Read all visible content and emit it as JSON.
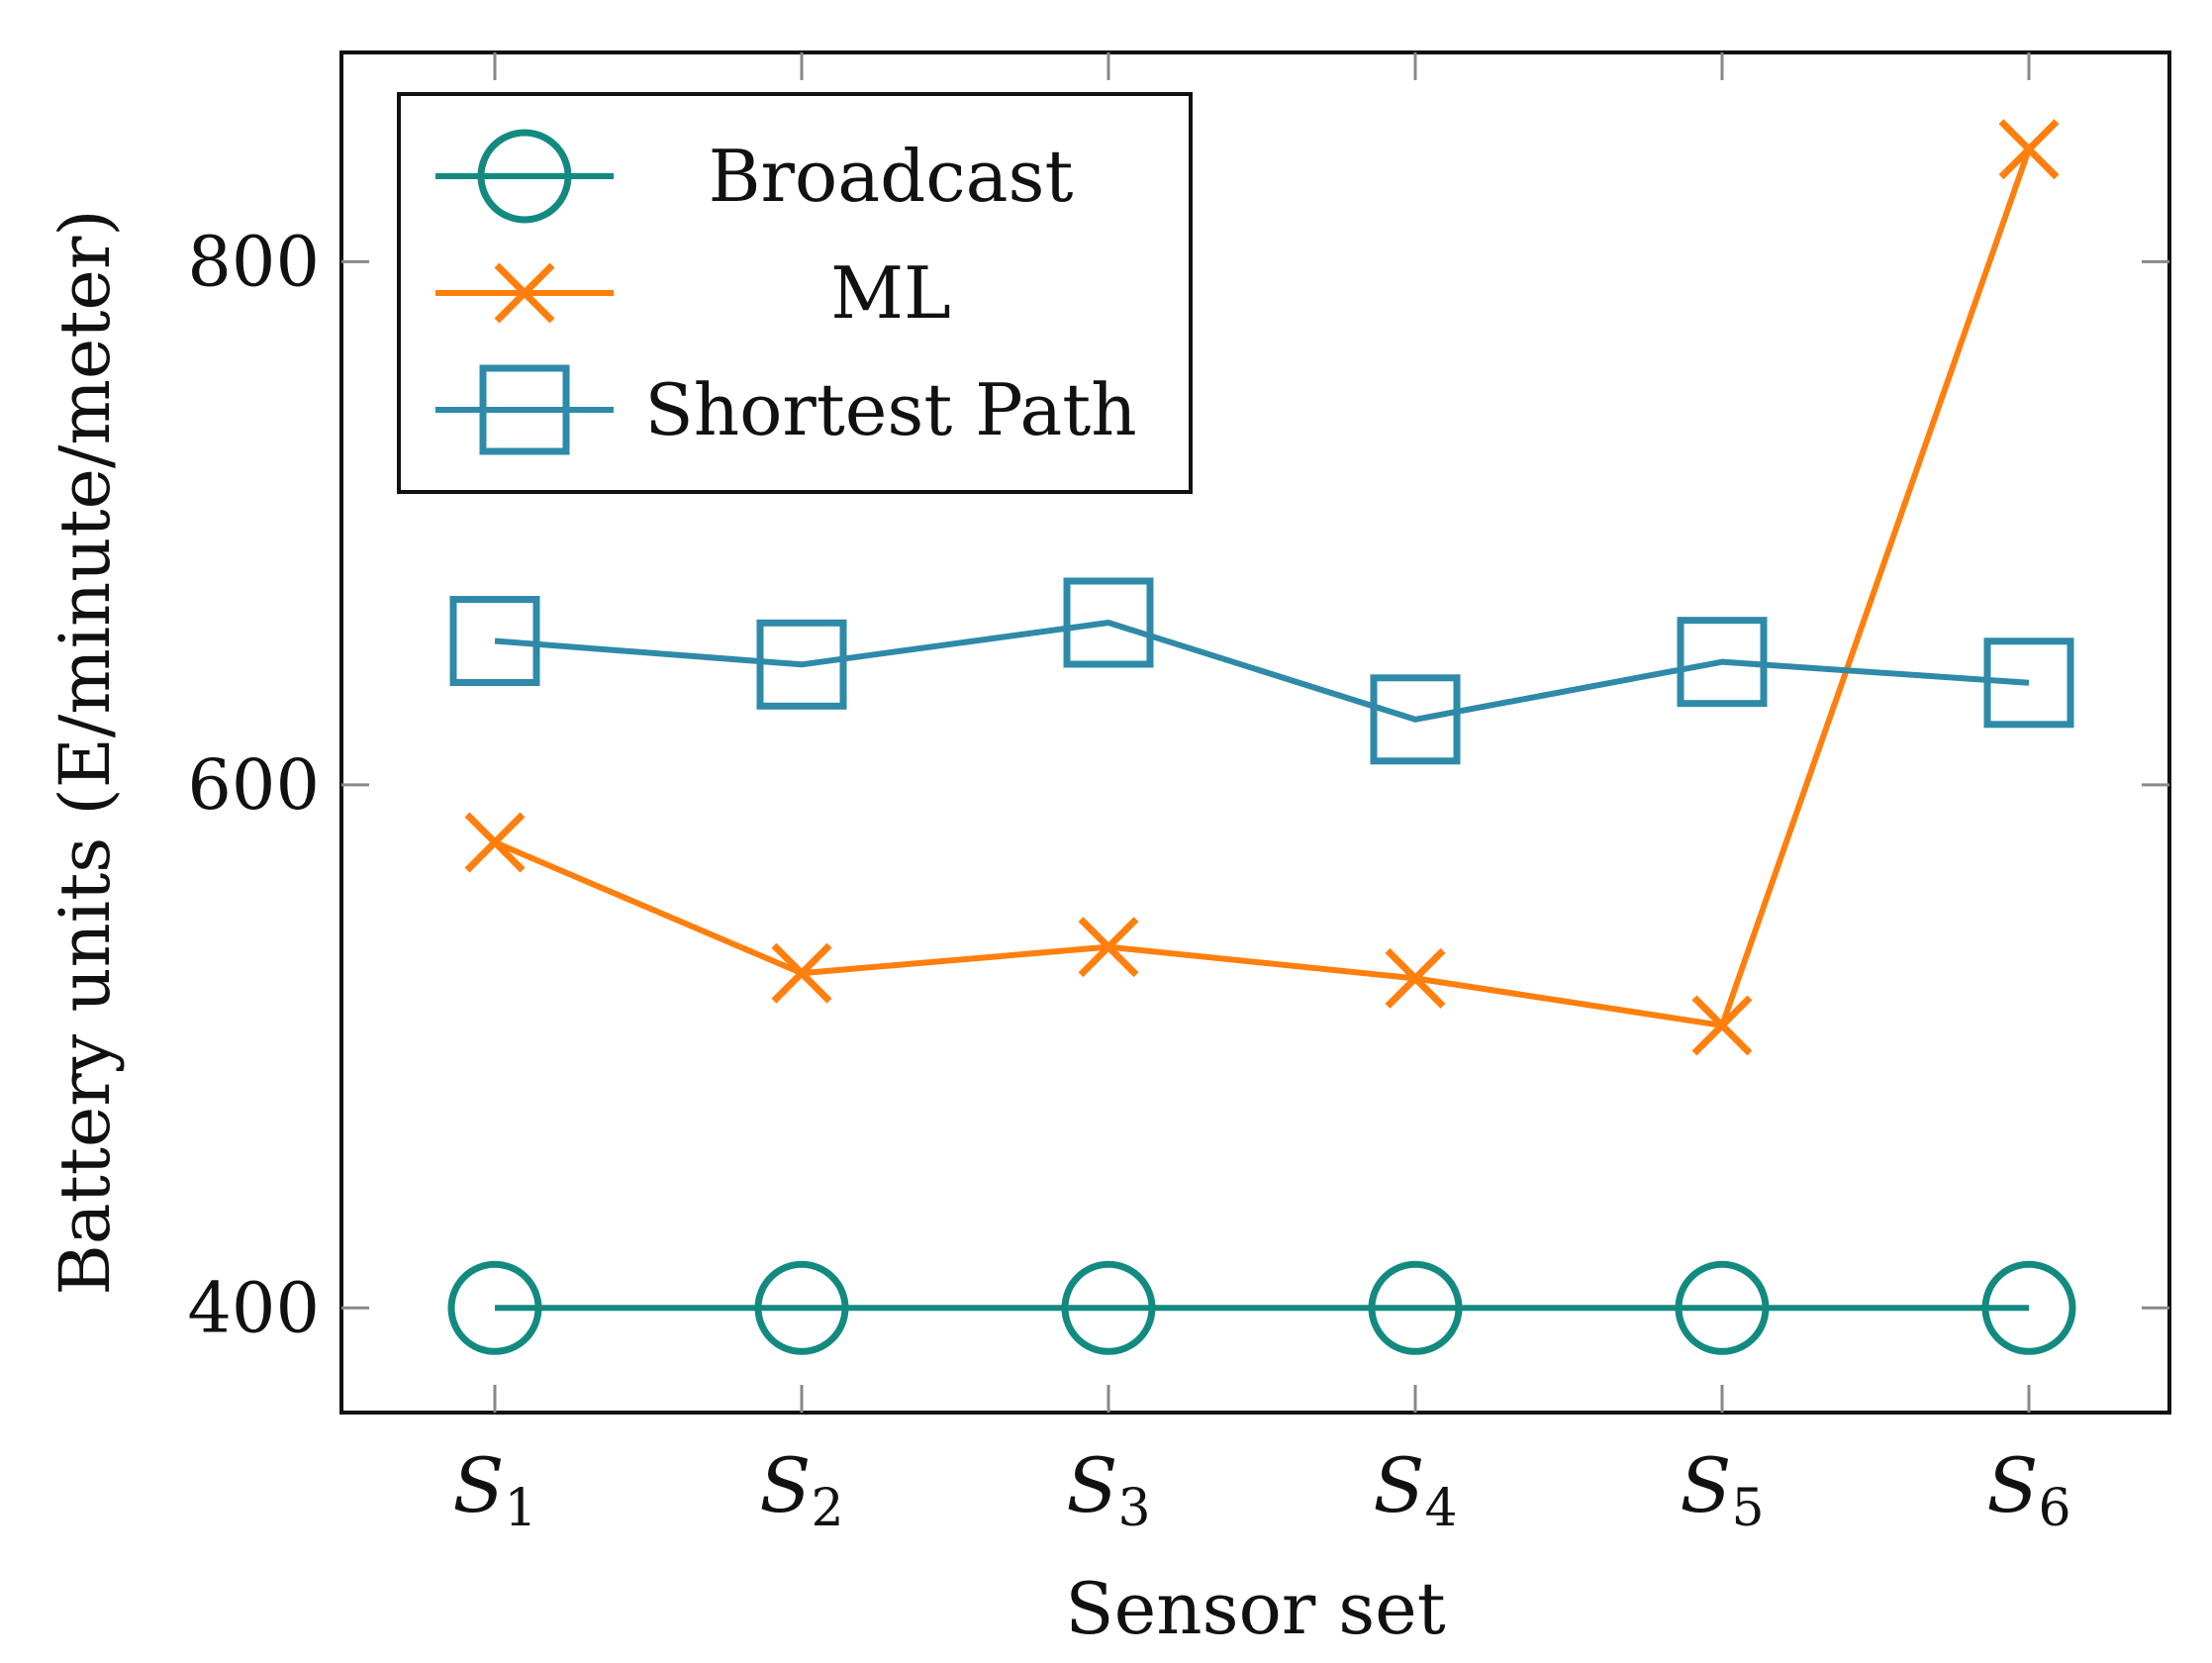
{
  "chart_data": {
    "type": "line",
    "xlabel": "Sensor set",
    "ylabel": "Battery units (E/minute/meter)",
    "categories": [
      {
        "base": "S",
        "sub": "1"
      },
      {
        "base": "S",
        "sub": "2"
      },
      {
        "base": "S",
        "sub": "3"
      },
      {
        "base": "S",
        "sub": "4"
      },
      {
        "base": "S",
        "sub": "5"
      },
      {
        "base": "S",
        "sub": "6"
      }
    ],
    "ylim": [
      360,
      880
    ],
    "yticks": [
      400,
      600,
      800
    ],
    "grid": false,
    "legend_position": "top-left",
    "series": [
      {
        "name": "Broadcast",
        "marker": "circle",
        "color": "#138a80",
        "values": [
          400,
          400,
          400,
          400,
          400,
          400
        ]
      },
      {
        "name": "ML",
        "marker": "x",
        "color": "#ff7f0e",
        "values": [
          578,
          528,
          538,
          526,
          508,
          843
        ]
      },
      {
        "name": "Shortest Path",
        "marker": "square",
        "color": "#2e8aa8",
        "values": [
          655,
          646,
          662,
          625,
          647,
          639
        ]
      }
    ]
  }
}
